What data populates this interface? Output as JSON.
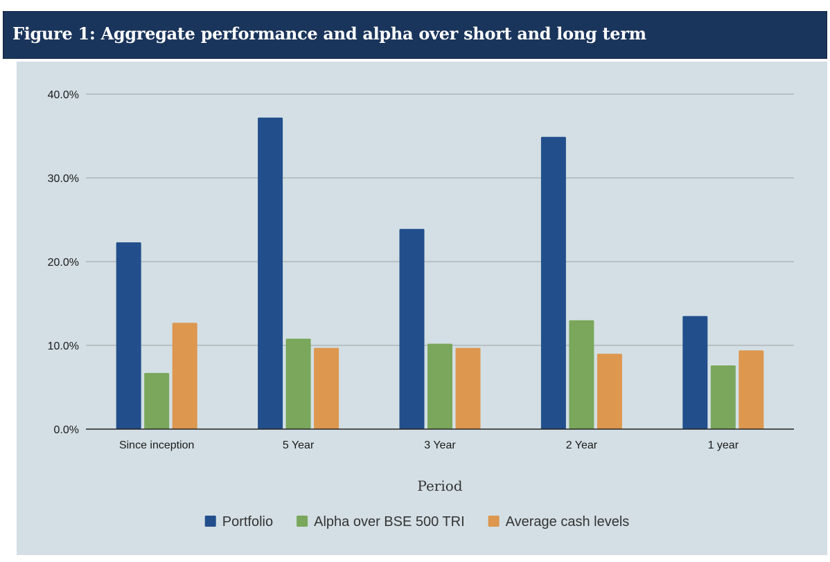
{
  "figure": {
    "title": "Figure 1:  Aggregate performance and alpha over short and long term"
  },
  "colors": {
    "header_bg": "#1a355b",
    "panel_bg": "#d3dfe4"
  },
  "chart_data": {
    "type": "bar",
    "title": "",
    "xlabel": "Period",
    "ylabel": "",
    "ylim": [
      0,
      40
    ],
    "y_ticks": [
      "0.0%",
      "10.0%",
      "20.0%",
      "30.0%",
      "40.0%"
    ],
    "grid": true,
    "legend_position": "bottom",
    "categories": [
      "Since inception",
      "5 Year",
      "3 Year",
      "2 Year",
      "1 year"
    ],
    "series": [
      {
        "name": "Portfolio",
        "color": "#224f8c",
        "values": [
          22.3,
          37.2,
          23.9,
          34.9,
          13.5
        ]
      },
      {
        "name": "Alpha over BSE 500 TRI",
        "color": "#7aa75b",
        "values": [
          6.7,
          10.8,
          10.2,
          13.0,
          7.6
        ]
      },
      {
        "name": "Average cash levels",
        "color": "#dd974f",
        "values": [
          12.7,
          9.7,
          9.7,
          9.0,
          9.4
        ]
      }
    ]
  }
}
